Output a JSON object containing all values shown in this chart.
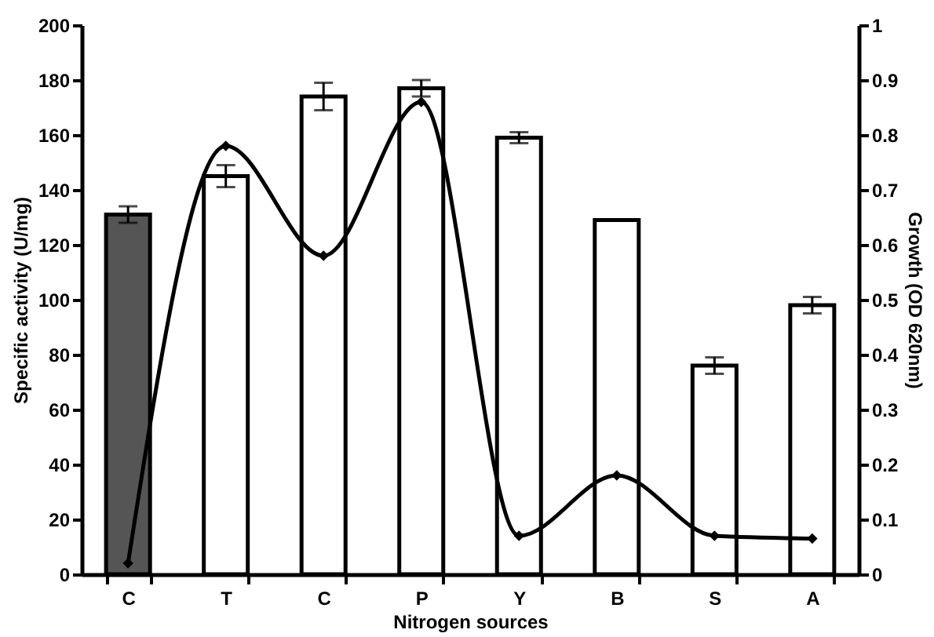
{
  "chart_data": {
    "type": "bar",
    "xlabel": "Nitrogen sources",
    "ylabel": "Specific activity (U/mg)",
    "y2label": "Growth (OD 620nm)",
    "categories": [
      "C",
      "T",
      "C",
      "P",
      "Y",
      "B",
      "S",
      "A"
    ],
    "series": [
      {
        "colors": [
          "#555555",
          "#ffffff",
          "#ffffff",
          "#ffffff",
          "#ffffff",
          "#ffffff",
          "#ffffff",
          "#ffffff"
        ],
        "values": [
          131,
          145,
          174,
          177,
          159,
          129,
          76,
          98
        ],
        "errors": [
          3,
          4,
          5,
          3,
          2,
          null,
          3,
          3
        ]
      },
      {
        "type": "line",
        "axis": "y2",
        "color": "#000000",
        "marker": "diamond",
        "values": [
          0.02,
          0.78,
          0.58,
          0.86,
          0.07,
          0.18,
          0.07,
          0.065
        ]
      }
    ],
    "ylim": [
      0,
      200
    ],
    "yticks": [
      0,
      20,
      40,
      60,
      80,
      100,
      120,
      140,
      160,
      180,
      200
    ],
    "y2lim": [
      0,
      1
    ],
    "y2ticks": [
      0,
      0.1,
      0.2,
      0.3,
      0.4,
      0.5,
      0.6,
      0.7,
      0.8,
      0.9,
      1
    ],
    "grid": false
  }
}
